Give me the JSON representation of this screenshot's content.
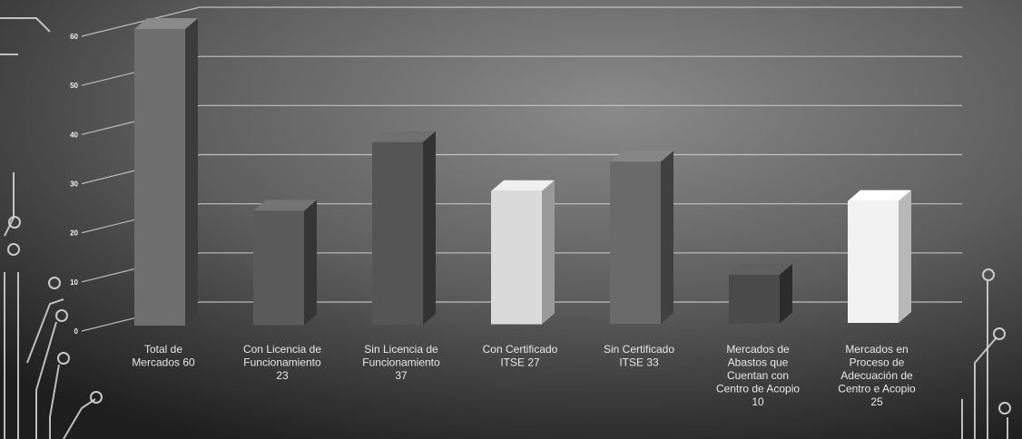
{
  "chart_data": {
    "type": "bar",
    "title": "",
    "xlabel": "",
    "ylabel": "",
    "ylim": [
      0,
      60
    ],
    "yticks": [
      "0",
      "10",
      "20",
      "30",
      "40",
      "50",
      "60"
    ],
    "categories": [
      [
        "Total de",
        "Mercados 60"
      ],
      [
        "Con Licencia de",
        "Funcionamiento",
        "23"
      ],
      [
        "Sin Licencia de",
        "Funcionamiento",
        "37"
      ],
      [
        "Con Certificado",
        "ITSE 27"
      ],
      [
        "Sin Certificado",
        "ITSE 33"
      ],
      [
        "Mercados de",
        "Abastos que",
        "Cuentan con",
        "Centro de Acopio",
        "10"
      ],
      [
        "Mercados en",
        "Proceso de",
        "Adecuación de",
        "Centro e Acopio",
        "25"
      ]
    ],
    "values": [
      60,
      23,
      37,
      27,
      33,
      10,
      25
    ],
    "colors": {
      "front": [
        "#6e6e6e",
        "#5a5a5a",
        "#555555",
        "#dadada",
        "#6a6a6a",
        "#4a4a4a",
        "#f2f2f2"
      ],
      "side": [
        "#3c3c3c",
        "#353535",
        "#333333",
        "#9a9a9a",
        "#404040",
        "#2c2c2c",
        "#b8b8b8"
      ],
      "top": [
        "#8a8a8a",
        "#747474",
        "#707070",
        "#efefef",
        "#868686",
        "#606060",
        "#ffffff"
      ],
      "grid": "#d0d0d0",
      "background": "#3a3a3a",
      "circuit": "#d8d8d8"
    },
    "grid": true,
    "legend": "none"
  }
}
